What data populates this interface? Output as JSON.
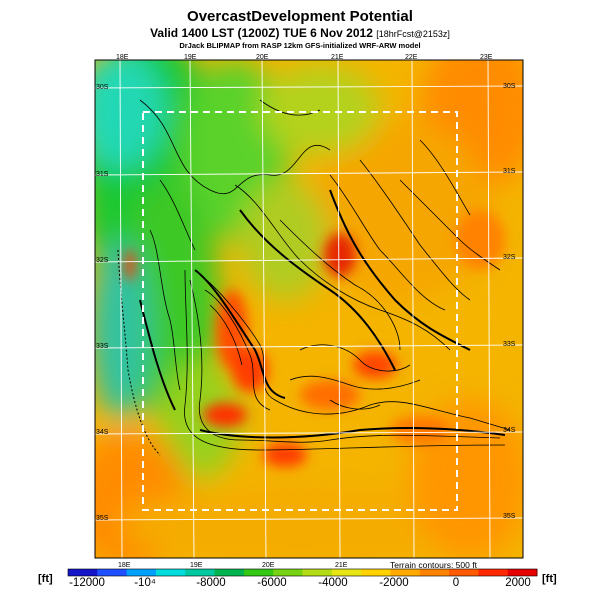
{
  "header": {
    "title": "OvercastDevelopment Potential",
    "valid": "Valid 1400 LST (1200Z) TUE 6 Nov 2012",
    "forecast": "[18hrFcst@2153z]",
    "credit": "DrJack BLIPMAP from RASP 12km GFS-initialized WRF-ARW model"
  },
  "axes": {
    "top_lon": [
      "18E",
      "19E",
      "20E",
      "21E",
      "22E",
      "23E"
    ],
    "bottom_lon": [
      "18E",
      "19E",
      "20E",
      "21E"
    ],
    "left_lat": [
      "30S",
      "31S",
      "32S",
      "33S",
      "34S",
      "35S"
    ],
    "right_lat": [
      "30S",
      "31S",
      "32S",
      "33S",
      "34S",
      "35S"
    ]
  },
  "footer": {
    "terrain_note": "Terrain contours: 500 ft"
  },
  "colorbar": {
    "unit_left": "[ft]",
    "unit_right": "[ft]",
    "labels": [
      "-12000",
      "-10⁴",
      "-8000",
      "-6000",
      "-4000",
      "-2000",
      "0",
      "2000"
    ],
    "colors": [
      "#1414c8",
      "#1e50ff",
      "#00a0ff",
      "#00dcdc",
      "#00c8a0",
      "#00b450",
      "#32c814",
      "#78d214",
      "#b4dc14",
      "#e6e614",
      "#ffd200",
      "#ffaa00",
      "#ff8200",
      "#ff5a00",
      "#ff2800",
      "#e60000"
    ]
  }
}
